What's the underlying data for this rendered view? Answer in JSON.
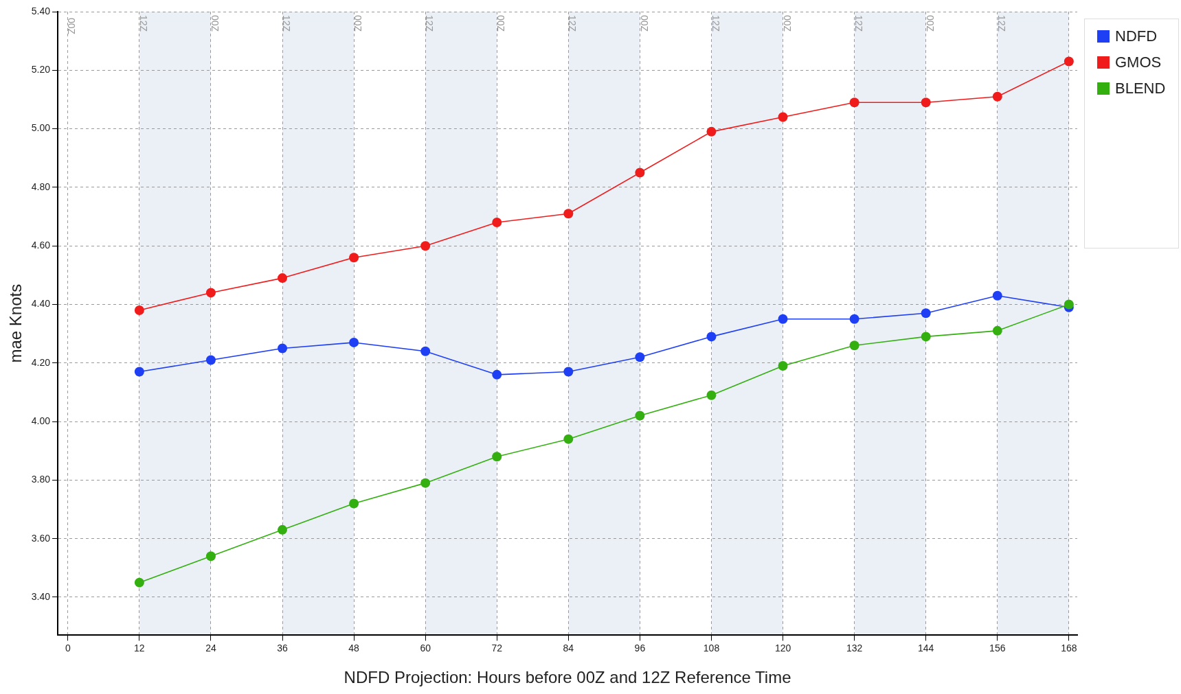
{
  "chart_data": {
    "type": "line",
    "xlabel": "NDFD Projection: Hours before 00Z and 12Z Reference Time",
    "ylabel": "mae Knots",
    "x": [
      12,
      24,
      36,
      48,
      60,
      72,
      84,
      96,
      108,
      120,
      132,
      144,
      156,
      168
    ],
    "series": [
      {
        "name": "NDFD",
        "color": "#1f3ff5",
        "values": [
          4.17,
          4.21,
          4.25,
          4.27,
          4.24,
          4.16,
          4.17,
          4.22,
          4.29,
          4.35,
          4.35,
          4.37,
          4.43,
          4.39
        ]
      },
      {
        "name": "GMOS",
        "color": "#f01c1c",
        "values": [
          4.38,
          4.44,
          4.49,
          4.56,
          4.6,
          4.68,
          4.71,
          4.85,
          4.99,
          5.04,
          5.09,
          5.09,
          5.11,
          5.23
        ]
      },
      {
        "name": "BLEND",
        "color": "#33b010",
        "values": [
          3.45,
          3.54,
          3.63,
          3.72,
          3.79,
          3.88,
          3.94,
          4.02,
          4.09,
          4.19,
          4.26,
          4.29,
          4.31,
          4.4
        ]
      }
    ],
    "xlim": [
      -1.7,
      169.4
    ],
    "ylim": [
      3.27,
      5.4
    ],
    "xticks": [
      0,
      12,
      24,
      36,
      48,
      60,
      72,
      84,
      96,
      108,
      120,
      132,
      144,
      156,
      168
    ],
    "yticks": [
      {
        "value": 3.4,
        "label": "3.40"
      },
      {
        "value": 3.6,
        "label": "3.60"
      },
      {
        "value": 3.8,
        "label": "3.80"
      },
      {
        "value": 4.0,
        "label": "4.00"
      },
      {
        "value": 4.2,
        "label": "4.20"
      },
      {
        "value": 4.4,
        "label": "4.40"
      },
      {
        "value": 4.6,
        "label": "4.60"
      },
      {
        "value": 4.8,
        "label": "4.80"
      },
      {
        "value": 5.0,
        "label": "5.00"
      },
      {
        "value": 5.2,
        "label": "5.20"
      },
      {
        "value": 5.4,
        "label": "5.40"
      }
    ],
    "bands": [
      {
        "axis": "x",
        "from": 12,
        "to": 24,
        "color": "#ebf0f7"
      },
      {
        "axis": "x",
        "from": 36,
        "to": 48,
        "color": "#ebf0f7"
      },
      {
        "axis": "x",
        "from": 60,
        "to": 72,
        "color": "#ebf0f7"
      },
      {
        "axis": "x",
        "from": 84,
        "to": 96,
        "color": "#ebf0f7"
      },
      {
        "axis": "x",
        "from": 108,
        "to": 120,
        "color": "#ebf0f7"
      },
      {
        "axis": "x",
        "from": 132,
        "to": 144,
        "color": "#ebf0f7"
      },
      {
        "axis": "x",
        "from": 156,
        "to": 168,
        "color": "#ebf0f7"
      }
    ],
    "annotations": [
      "00Z",
      {
        "text": "12Z",
        "x": 12,
        "y": 5.36
      },
      {
        "text": "00Z",
        "x": 24,
        "y": 5.36
      },
      {
        "text": "12Z",
        "x": 36,
        "y": 5.36
      },
      {
        "text": "00Z",
        "x": 48,
        "y": 5.36
      },
      {
        "text": "12Z",
        "x": 60,
        "y": 5.36
      },
      {
        "text": "00Z",
        "x": 72,
        "y": 5.36
      },
      {
        "text": "12Z",
        "x": 84,
        "y": 5.36
      },
      {
        "text": "00Z",
        "x": 96,
        "y": 5.36
      },
      {
        "text": "12Z",
        "x": 108,
        "y": 5.36
      },
      {
        "text": "00Z",
        "x": 120,
        "y": 5.36
      },
      {
        "text": "12Z",
        "x": 132,
        "y": 5.36
      },
      {
        "text": "00Z",
        "x": 144,
        "y": 5.36
      },
      {
        "text": "12Z",
        "x": 156,
        "y": 5.36
      }
    ],
    "grid": true,
    "legend": "top right",
    "marker": "circle",
    "line_style": "solid"
  }
}
